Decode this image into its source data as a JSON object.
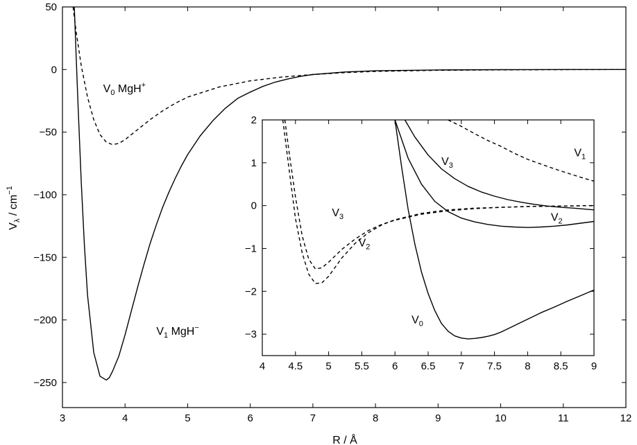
{
  "chart_data": [
    {
      "type": "line",
      "xlabel": "R / Å",
      "ylabel": "Vλ / cm−1",
      "ylabel_parts": {
        "base": "V",
        "sub": "λ",
        "mid": " / cm",
        "sup": "−1"
      },
      "xlim": [
        3,
        12
      ],
      "ylim": [
        -270,
        50
      ],
      "xticks": [
        3,
        4,
        5,
        6,
        7,
        8,
        9,
        10,
        11,
        12
      ],
      "yticks": [
        50,
        0,
        -50,
        -100,
        -150,
        -200,
        -250
      ],
      "ytick_labels": [
        "50",
        "0",
        "−50",
        "−100",
        "−150",
        "−200",
        "−250"
      ],
      "grid": false,
      "series": [
        {
          "name": "V0 MgH+",
          "label_parts": {
            "base": "V",
            "sub": "0",
            "rest": " MgH",
            "sup": "+"
          },
          "style": "dashed",
          "x": [
            3.17,
            3.22,
            3.3,
            3.4,
            3.5,
            3.6,
            3.7,
            3.8,
            3.9,
            4.0,
            4.2,
            4.4,
            4.6,
            4.8,
            5.0,
            5.5,
            6.0,
            6.5,
            7.0,
            7.5,
            8.0,
            9.0,
            10.0,
            11.0,
            12.0
          ],
          "y": [
            50,
            30,
            3,
            -22,
            -40,
            -52,
            -58,
            -60,
            -59,
            -56,
            -48,
            -40,
            -33,
            -27,
            -22,
            -14,
            -9,
            -6,
            -4,
            -2.5,
            -1.5,
            -0.6,
            -0.25,
            -0.1,
            0
          ]
        },
        {
          "name": "V1 MgH−",
          "label_parts": {
            "base": "V",
            "sub": "1",
            "rest": " MgH",
            "sup": "−"
          },
          "style": "solid",
          "x": [
            3.19,
            3.22,
            3.25,
            3.3,
            3.35,
            3.4,
            3.5,
            3.6,
            3.7,
            3.75,
            3.8,
            3.9,
            4.0,
            4.1,
            4.2,
            4.3,
            4.4,
            4.5,
            4.6,
            4.7,
            4.8,
            4.9,
            5.0,
            5.2,
            5.4,
            5.6,
            5.8,
            6.0,
            6.2,
            6.4,
            6.6,
            6.8,
            7.0,
            7.5,
            8.0,
            9.0,
            10.0,
            11.0,
            12.0
          ],
          "y": [
            50,
            10,
            -30,
            -90,
            -140,
            -180,
            -226,
            -245,
            -248,
            -246,
            -241,
            -229,
            -212,
            -193,
            -174,
            -156,
            -139,
            -124,
            -110,
            -98,
            -87,
            -77,
            -68,
            -53,
            -41,
            -31,
            -23,
            -18,
            -13.5,
            -10,
            -7.5,
            -5.5,
            -4,
            -2,
            -1,
            -0.3,
            -0.1,
            0,
            0
          ]
        }
      ],
      "annotations": [
        {
          "series": "V0 MgH+",
          "x": 3.65,
          "y": -18
        },
        {
          "series": "V1 MgH−",
          "x": 4.5,
          "y": -212
        }
      ]
    },
    {
      "type": "line",
      "xlabel": "",
      "ylabel": "",
      "xlim": [
        4,
        9
      ],
      "ylim": [
        -3.5,
        2
      ],
      "xticks": [
        4,
        4.5,
        5,
        5.5,
        6,
        6.5,
        7,
        7.5,
        8,
        8.5,
        9
      ],
      "xtick_labels": [
        "4",
        "4.5",
        "5",
        "5.5",
        "6",
        "6.5",
        "7",
        "7.5",
        "8",
        "8.5",
        "9"
      ],
      "yticks": [
        2,
        1,
        0,
        -1,
        -2,
        -3
      ],
      "ytick_labels": [
        "2",
        "1",
        "0",
        "−1",
        "−2",
        "−3"
      ],
      "grid": false,
      "series": [
        {
          "name": "V3 (MgH+)",
          "label_parts": {
            "base": "V",
            "sub": "3"
          },
          "style": "dashed",
          "x": [
            4.34,
            4.4,
            4.5,
            4.6,
            4.7,
            4.8,
            4.9,
            5.0,
            5.2,
            5.4,
            5.6,
            5.8,
            6.0,
            6.4,
            6.8,
            7.2,
            7.6,
            8.0,
            8.5,
            9.0
          ],
          "y": [
            2,
            1.3,
            0.2,
            -0.7,
            -1.25,
            -1.48,
            -1.45,
            -1.32,
            -1.02,
            -0.78,
            -0.58,
            -0.44,
            -0.34,
            -0.2,
            -0.12,
            -0.07,
            -0.04,
            -0.02,
            -0.01,
            0
          ]
        },
        {
          "name": "V2 (MgH+)",
          "label_parts": {
            "base": "V",
            "sub": "2"
          },
          "style": "dashed",
          "x": [
            4.31,
            4.4,
            4.5,
            4.6,
            4.7,
            4.8,
            4.9,
            5.0,
            5.2,
            5.4,
            5.6,
            5.8,
            6.0,
            6.4,
            6.8,
            7.2,
            7.6,
            8.0,
            8.5,
            9.0
          ],
          "y": [
            2,
            0.9,
            -0.3,
            -1.1,
            -1.6,
            -1.82,
            -1.8,
            -1.65,
            -1.22,
            -0.88,
            -0.63,
            -0.45,
            -0.33,
            -0.18,
            -0.1,
            -0.06,
            -0.04,
            -0.02,
            -0.01,
            0
          ]
        },
        {
          "name": "V1 (MgH+)",
          "label_parts": {
            "base": "V",
            "sub": "1"
          },
          "style": "dashed",
          "x": [
            6.8,
            7.0,
            7.2,
            7.4,
            7.6,
            7.8,
            8.0,
            8.2,
            8.4,
            8.6,
            8.8,
            9.0
          ],
          "y": [
            2,
            1.85,
            1.68,
            1.52,
            1.38,
            1.22,
            1.08,
            0.97,
            0.86,
            0.76,
            0.66,
            0.57
          ]
        },
        {
          "name": "V0 (MgH−)",
          "label_parts": {
            "base": "V",
            "sub": "0"
          },
          "style": "solid",
          "x": [
            6.0,
            6.1,
            6.2,
            6.3,
            6.4,
            6.5,
            6.6,
            6.7,
            6.8,
            6.9,
            7.0,
            7.1,
            7.2,
            7.3,
            7.4,
            7.5,
            7.6,
            7.8,
            8.0,
            8.2,
            8.4,
            8.6,
            8.8,
            9.0
          ],
          "y": [
            2,
            0.9,
            -0.1,
            -0.9,
            -1.55,
            -2.05,
            -2.45,
            -2.75,
            -2.93,
            -3.04,
            -3.09,
            -3.11,
            -3.1,
            -3.08,
            -3.05,
            -3.01,
            -2.95,
            -2.8,
            -2.65,
            -2.5,
            -2.37,
            -2.23,
            -2.1,
            -1.97
          ]
        },
        {
          "name": "V3 (MgH−)",
          "label_parts": {
            "base": "V",
            "sub": "3"
          },
          "style": "solid",
          "x": [
            6.15,
            6.3,
            6.5,
            6.7,
            6.9,
            7.1,
            7.3,
            7.5,
            7.7,
            7.9,
            8.1,
            8.3,
            8.5,
            8.7,
            9.0
          ],
          "y": [
            2,
            1.6,
            1.18,
            0.86,
            0.63,
            0.45,
            0.32,
            0.22,
            0.14,
            0.08,
            0.03,
            -0.01,
            -0.04,
            -0.06,
            -0.1
          ]
        },
        {
          "name": "V2 (MgH−)",
          "label_parts": {
            "base": "V",
            "sub": "2"
          },
          "style": "solid",
          "x": [
            6.0,
            6.2,
            6.4,
            6.6,
            6.8,
            7.0,
            7.2,
            7.4,
            7.6,
            7.8,
            8.0,
            8.2,
            8.4,
            8.6,
            8.8,
            9.0
          ],
          "y": [
            2,
            1.1,
            0.5,
            0.1,
            -0.14,
            -0.29,
            -0.38,
            -0.44,
            -0.48,
            -0.5,
            -0.51,
            -0.5,
            -0.48,
            -0.45,
            -0.41,
            -0.37
          ]
        }
      ],
      "annotations": [
        {
          "series": "V1 (MgH+)",
          "x": 8.7,
          "y": 1.15
        },
        {
          "series": "V3 (MgH−)",
          "x": 6.7,
          "y": 0.95
        },
        {
          "series": "V3 (MgH+)",
          "x": 5.05,
          "y": -0.25
        },
        {
          "series": "V2 (MgH+)",
          "x": 5.45,
          "y": -0.95
        },
        {
          "series": "V2 (MgH−)",
          "x": 8.35,
          "y": -0.35
        },
        {
          "series": "V0 (MgH−)",
          "x": 6.25,
          "y": -2.75
        }
      ]
    }
  ]
}
